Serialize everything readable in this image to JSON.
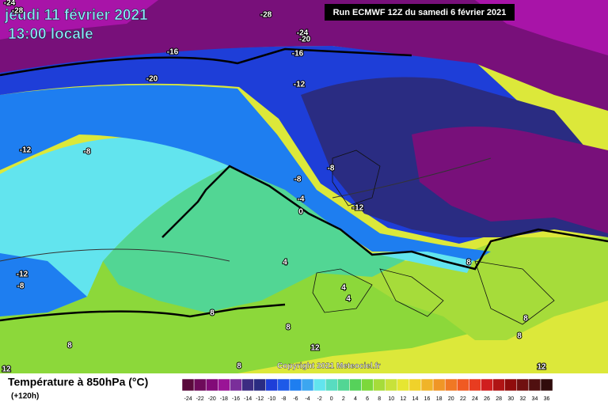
{
  "header": {
    "date": "jeudi 11 février 2021",
    "time": "13:00 locale",
    "run": "Run ECMWF 12Z du samedi 6 février 2021"
  },
  "contour_labels": [
    "-24",
    "-28",
    "-28",
    "-24",
    "-20",
    "-16",
    "-16",
    "-20",
    "-12",
    "-12",
    "-8",
    "-8",
    "-8",
    "-4",
    "0",
    "-12",
    "4",
    "-12",
    "-8",
    "4",
    "4",
    "8",
    "8",
    "8",
    "12",
    "8",
    "8",
    "8",
    "8",
    "12",
    "12"
  ],
  "copyright": "Copyright 2021 Meteociel.fr",
  "footer": {
    "title": "Température à 850hPa (°C)",
    "lead": "(+120h)"
  },
  "legend": {
    "labels": [
      "-24",
      "-22",
      "-20",
      "-18",
      "-16",
      "-14",
      "-12",
      "-10",
      "-8",
      "-6",
      "-4",
      "-2",
      "0",
      "2",
      "4",
      "6",
      "8",
      "10",
      "12",
      "14",
      "16",
      "18",
      "20",
      "22",
      "24",
      "26",
      "28",
      "30",
      "32",
      "34",
      "36"
    ]
  }
}
